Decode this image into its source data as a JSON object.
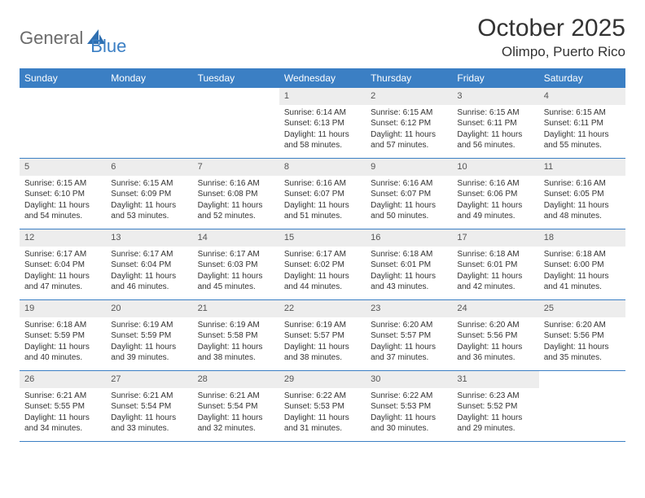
{
  "logo": {
    "text1": "General",
    "text2": "Blue"
  },
  "title": "October 2025",
  "location": "Olimpo, Puerto Rico",
  "colors": {
    "header_bg": "#3b7fc4",
    "header_text": "#ffffff",
    "daynum_bg": "#ededed",
    "divider": "#3b7fc4",
    "body_text": "#333333"
  },
  "day_names": [
    "Sunday",
    "Monday",
    "Tuesday",
    "Wednesday",
    "Thursday",
    "Friday",
    "Saturday"
  ],
  "cells": [
    {
      "empty": true
    },
    {
      "empty": true
    },
    {
      "empty": true
    },
    {
      "day": "1",
      "sunrise": "Sunrise: 6:14 AM",
      "sunset": "Sunset: 6:13 PM",
      "daylight": "Daylight: 11 hours and 58 minutes."
    },
    {
      "day": "2",
      "sunrise": "Sunrise: 6:15 AM",
      "sunset": "Sunset: 6:12 PM",
      "daylight": "Daylight: 11 hours and 57 minutes."
    },
    {
      "day": "3",
      "sunrise": "Sunrise: 6:15 AM",
      "sunset": "Sunset: 6:11 PM",
      "daylight": "Daylight: 11 hours and 56 minutes."
    },
    {
      "day": "4",
      "sunrise": "Sunrise: 6:15 AM",
      "sunset": "Sunset: 6:11 PM",
      "daylight": "Daylight: 11 hours and 55 minutes."
    },
    {
      "day": "5",
      "sunrise": "Sunrise: 6:15 AM",
      "sunset": "Sunset: 6:10 PM",
      "daylight": "Daylight: 11 hours and 54 minutes."
    },
    {
      "day": "6",
      "sunrise": "Sunrise: 6:15 AM",
      "sunset": "Sunset: 6:09 PM",
      "daylight": "Daylight: 11 hours and 53 minutes."
    },
    {
      "day": "7",
      "sunrise": "Sunrise: 6:16 AM",
      "sunset": "Sunset: 6:08 PM",
      "daylight": "Daylight: 11 hours and 52 minutes."
    },
    {
      "day": "8",
      "sunrise": "Sunrise: 6:16 AM",
      "sunset": "Sunset: 6:07 PM",
      "daylight": "Daylight: 11 hours and 51 minutes."
    },
    {
      "day": "9",
      "sunrise": "Sunrise: 6:16 AM",
      "sunset": "Sunset: 6:07 PM",
      "daylight": "Daylight: 11 hours and 50 minutes."
    },
    {
      "day": "10",
      "sunrise": "Sunrise: 6:16 AM",
      "sunset": "Sunset: 6:06 PM",
      "daylight": "Daylight: 11 hours and 49 minutes."
    },
    {
      "day": "11",
      "sunrise": "Sunrise: 6:16 AM",
      "sunset": "Sunset: 6:05 PM",
      "daylight": "Daylight: 11 hours and 48 minutes."
    },
    {
      "day": "12",
      "sunrise": "Sunrise: 6:17 AM",
      "sunset": "Sunset: 6:04 PM",
      "daylight": "Daylight: 11 hours and 47 minutes."
    },
    {
      "day": "13",
      "sunrise": "Sunrise: 6:17 AM",
      "sunset": "Sunset: 6:04 PM",
      "daylight": "Daylight: 11 hours and 46 minutes."
    },
    {
      "day": "14",
      "sunrise": "Sunrise: 6:17 AM",
      "sunset": "Sunset: 6:03 PM",
      "daylight": "Daylight: 11 hours and 45 minutes."
    },
    {
      "day": "15",
      "sunrise": "Sunrise: 6:17 AM",
      "sunset": "Sunset: 6:02 PM",
      "daylight": "Daylight: 11 hours and 44 minutes."
    },
    {
      "day": "16",
      "sunrise": "Sunrise: 6:18 AM",
      "sunset": "Sunset: 6:01 PM",
      "daylight": "Daylight: 11 hours and 43 minutes."
    },
    {
      "day": "17",
      "sunrise": "Sunrise: 6:18 AM",
      "sunset": "Sunset: 6:01 PM",
      "daylight": "Daylight: 11 hours and 42 minutes."
    },
    {
      "day": "18",
      "sunrise": "Sunrise: 6:18 AM",
      "sunset": "Sunset: 6:00 PM",
      "daylight": "Daylight: 11 hours and 41 minutes."
    },
    {
      "day": "19",
      "sunrise": "Sunrise: 6:18 AM",
      "sunset": "Sunset: 5:59 PM",
      "daylight": "Daylight: 11 hours and 40 minutes."
    },
    {
      "day": "20",
      "sunrise": "Sunrise: 6:19 AM",
      "sunset": "Sunset: 5:59 PM",
      "daylight": "Daylight: 11 hours and 39 minutes."
    },
    {
      "day": "21",
      "sunrise": "Sunrise: 6:19 AM",
      "sunset": "Sunset: 5:58 PM",
      "daylight": "Daylight: 11 hours and 38 minutes."
    },
    {
      "day": "22",
      "sunrise": "Sunrise: 6:19 AM",
      "sunset": "Sunset: 5:57 PM",
      "daylight": "Daylight: 11 hours and 38 minutes."
    },
    {
      "day": "23",
      "sunrise": "Sunrise: 6:20 AM",
      "sunset": "Sunset: 5:57 PM",
      "daylight": "Daylight: 11 hours and 37 minutes."
    },
    {
      "day": "24",
      "sunrise": "Sunrise: 6:20 AM",
      "sunset": "Sunset: 5:56 PM",
      "daylight": "Daylight: 11 hours and 36 minutes."
    },
    {
      "day": "25",
      "sunrise": "Sunrise: 6:20 AM",
      "sunset": "Sunset: 5:56 PM",
      "daylight": "Daylight: 11 hours and 35 minutes."
    },
    {
      "day": "26",
      "sunrise": "Sunrise: 6:21 AM",
      "sunset": "Sunset: 5:55 PM",
      "daylight": "Daylight: 11 hours and 34 minutes."
    },
    {
      "day": "27",
      "sunrise": "Sunrise: 6:21 AM",
      "sunset": "Sunset: 5:54 PM",
      "daylight": "Daylight: 11 hours and 33 minutes."
    },
    {
      "day": "28",
      "sunrise": "Sunrise: 6:21 AM",
      "sunset": "Sunset: 5:54 PM",
      "daylight": "Daylight: 11 hours and 32 minutes."
    },
    {
      "day": "29",
      "sunrise": "Sunrise: 6:22 AM",
      "sunset": "Sunset: 5:53 PM",
      "daylight": "Daylight: 11 hours and 31 minutes."
    },
    {
      "day": "30",
      "sunrise": "Sunrise: 6:22 AM",
      "sunset": "Sunset: 5:53 PM",
      "daylight": "Daylight: 11 hours and 30 minutes."
    },
    {
      "day": "31",
      "sunrise": "Sunrise: 6:23 AM",
      "sunset": "Sunset: 5:52 PM",
      "daylight": "Daylight: 11 hours and 29 minutes."
    },
    {
      "empty": true
    }
  ]
}
